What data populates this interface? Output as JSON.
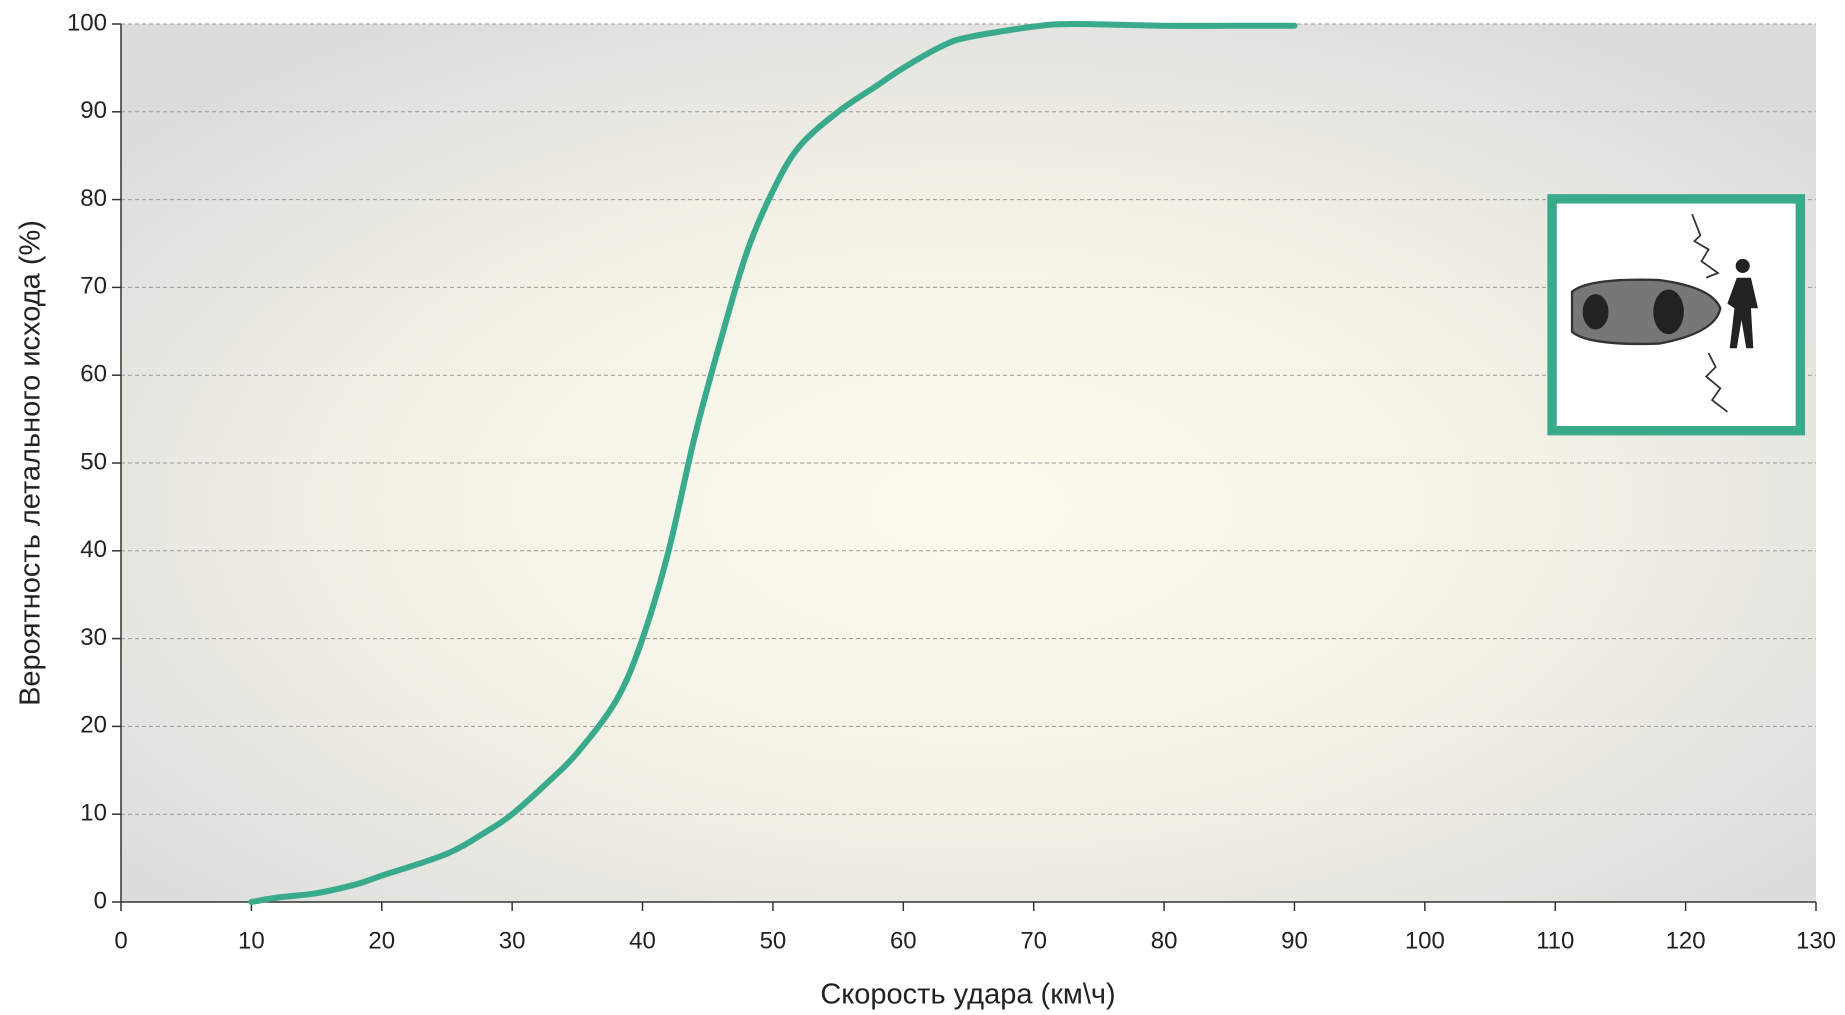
{
  "chart_data": {
    "type": "line",
    "xlabel": "Скорость удара (км\\ч)",
    "ylabel": "Вероятность летального исхода (%)",
    "x": [
      10,
      12,
      15,
      18,
      20,
      25,
      28,
      30,
      33,
      35,
      38,
      40,
      42,
      44,
      46,
      48,
      50,
      52,
      55,
      58,
      60,
      63,
      65,
      70,
      73,
      80,
      85,
      90
    ],
    "series": [
      {
        "color": "#3aaa8c",
        "values": [
          0,
          0.5,
          1,
          2,
          3,
          5.5,
          8,
          10,
          14,
          17,
          23,
          30,
          40,
          53,
          64,
          74,
          81,
          86,
          90,
          93,
          95,
          97.5,
          98.5,
          99.7,
          100,
          99.8,
          99.8,
          99.8
        ]
      }
    ],
    "xlim": [
      0,
      130
    ],
    "xticks": [
      0,
      10,
      20,
      30,
      40,
      50,
      60,
      70,
      80,
      90,
      100,
      110,
      120,
      130
    ],
    "ylim": [
      0,
      100
    ],
    "yticks": [
      0,
      10,
      20,
      30,
      40,
      50,
      60,
      70,
      80,
      90,
      100
    ],
    "grid": true
  }
}
